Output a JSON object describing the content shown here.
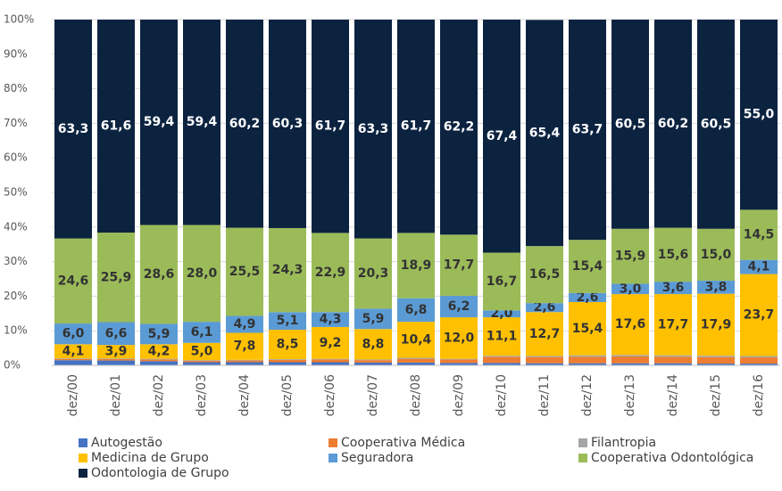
{
  "chart_data": {
    "type": "stacked_bar",
    "categories": [
      "dez/00",
      "dez/01",
      "dez/02",
      "dez/03",
      "dez/04",
      "dez/05",
      "dez/06",
      "dez/07",
      "dez/08",
      "dez/09",
      "dez/10",
      "dez/11",
      "dez/12",
      "dez/13",
      "dez/14",
      "dez/15",
      "dez/16"
    ],
    "ylim": [
      0,
      100
    ],
    "yticks": [
      {
        "value": 0,
        "label": "0%"
      },
      {
        "value": 10,
        "label": "10%"
      },
      {
        "value": 20,
        "label": "20%"
      },
      {
        "value": 30,
        "label": "30%"
      },
      {
        "value": 40,
        "label": "40%"
      },
      {
        "value": 50,
        "label": "50%"
      },
      {
        "value": 60,
        "label": "60%"
      },
      {
        "value": 70,
        "label": "70%"
      },
      {
        "value": 80,
        "label": "80%"
      },
      {
        "value": 90,
        "label": "90%"
      },
      {
        "value": 100,
        "label": "100%"
      }
    ],
    "grid": true,
    "series": [
      {
        "name": "Autogestão",
        "color": "#4472c4",
        "values": [
          1.5,
          1.4,
          1.2,
          0.9,
          0.9,
          0.9,
          0.9,
          0.8,
          0.8,
          0.7,
          0.7,
          0.6,
          0.6,
          0.6,
          0.6,
          0.5,
          0.5
        ]
      },
      {
        "name": "Cooperativa Médica",
        "color": "#ed7d31",
        "values": [
          0.3,
          0.4,
          0.5,
          0.4,
          0.5,
          0.7,
          0.8,
          0.7,
          1.1,
          1.0,
          1.8,
          1.8,
          1.9,
          2.0,
          1.9,
          1.9,
          1.8
        ]
      },
      {
        "name": "Filantropia",
        "color": "#a5a5a5",
        "values": [
          0.2,
          0.2,
          0.2,
          0.2,
          0.2,
          0.2,
          0.2,
          0.2,
          0.3,
          0.2,
          0.3,
          0.3,
          0.4,
          0.4,
          0.4,
          0.4,
          0.4
        ]
      },
      {
        "name": "Medicina de Grupo",
        "color": "#ffc000",
        "values": [
          4.1,
          3.9,
          4.2,
          5.0,
          7.8,
          8.5,
          9.2,
          8.8,
          10.4,
          12.0,
          11.1,
          12.7,
          15.4,
          17.6,
          17.7,
          17.9,
          23.7
        ],
        "value_labels": [
          "4,1",
          "3,9",
          "4,2",
          "5,0",
          "7,8",
          "8,5",
          "9,2",
          "8,8",
          "10,4",
          "12,0",
          "11,1",
          "12,7",
          "15,4",
          "17,6",
          "17,7",
          "17,9",
          "23,7"
        ]
      },
      {
        "name": "Seguradora",
        "color": "#5b9bd5",
        "values": [
          6.0,
          6.6,
          5.9,
          6.1,
          4.9,
          5.1,
          4.3,
          5.9,
          6.8,
          6.2,
          2.0,
          2.6,
          2.6,
          3.0,
          3.6,
          3.8,
          4.1
        ],
        "value_labels": [
          "6,0",
          "6,6",
          "5,9",
          "6,1",
          "4,9",
          "5,1",
          "4,3",
          "5,9",
          "6,8",
          "6,2",
          "2,0",
          "2,6",
          "2,6",
          "3,0",
          "3,6",
          "3,8",
          "4,1"
        ]
      },
      {
        "name": "Cooperativa Odontológica",
        "color": "#9bbb59",
        "values": [
          24.6,
          25.9,
          28.6,
          28.0,
          25.5,
          24.3,
          22.9,
          20.3,
          18.9,
          17.7,
          16.7,
          16.5,
          15.4,
          15.9,
          15.6,
          15.0,
          14.5
        ],
        "value_labels": [
          "24,6",
          "25,9",
          "28,6",
          "28,0",
          "25,5",
          "24,3",
          "22,9",
          "20,3",
          "18,9",
          "17,7",
          "16,7",
          "16,5",
          "15,4",
          "15,9",
          "15,6",
          "15,0",
          "14,5"
        ]
      },
      {
        "name": "Odontologia de Grupo",
        "color": "#0c2340",
        "values": [
          63.3,
          61.6,
          59.4,
          59.4,
          60.2,
          60.3,
          61.7,
          63.3,
          61.7,
          62.2,
          67.4,
          65.4,
          63.7,
          60.5,
          60.2,
          60.5,
          55.0
        ],
        "value_labels": [
          "63,3",
          "61,6",
          "59,4",
          "59,4",
          "60,2",
          "60,3",
          "61,7",
          "63,3",
          "61,7",
          "62,2",
          "67,4",
          "65,4",
          "63,7",
          "60,5",
          "60,2",
          "60,5",
          "55,0"
        ]
      }
    ]
  }
}
